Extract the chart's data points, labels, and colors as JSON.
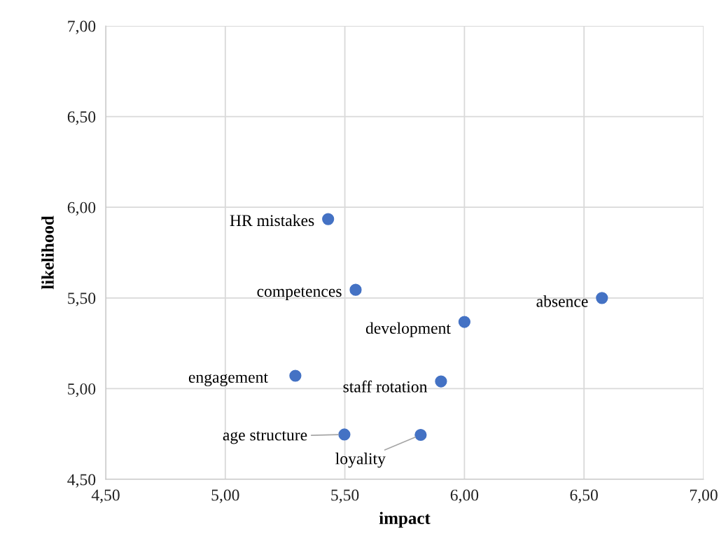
{
  "chart_data": {
    "type": "scatter",
    "xlabel": "impact",
    "ylabel": "likelihood",
    "series": [
      {
        "color": "#4472c4",
        "x": [
          5.43,
          5.545,
          6.575,
          6.0,
          5.293,
          5.902,
          5.498,
          5.817
        ],
        "values": [
          5.935,
          5.545,
          5.5,
          5.368,
          5.071,
          5.04,
          4.747,
          4.745
        ]
      }
    ],
    "annotations": [
      {
        "text": "HR mistakes",
        "x": 5.43,
        "y": 5.935
      },
      {
        "text": "competences",
        "x": 5.545,
        "y": 5.545
      },
      {
        "text": "absence",
        "x": 6.575,
        "y": 5.5
      },
      {
        "text": "development",
        "x": 6.0,
        "y": 5.368
      },
      {
        "text": "engagement",
        "x": 5.293,
        "y": 5.071
      },
      {
        "text": "staff rotation",
        "x": 5.902,
        "y": 5.04
      },
      {
        "text": "age structure",
        "x": 5.498,
        "y": 4.747
      },
      {
        "text": "loyality",
        "x": 5.817,
        "y": 4.745
      }
    ],
    "xlim": [
      4.5,
      7.0
    ],
    "ylim": [
      4.5,
      7.0
    ],
    "xticks": [
      {
        "value": 4.5,
        "label": "4,50"
      },
      {
        "value": 5.0,
        "label": "5,00"
      },
      {
        "value": 5.5,
        "label": "5,50"
      },
      {
        "value": 6.0,
        "label": "6,00"
      },
      {
        "value": 6.5,
        "label": "6,50"
      },
      {
        "value": 7.0,
        "label": "7,00"
      }
    ],
    "yticks": [
      {
        "value": 4.5,
        "label": "4,50"
      },
      {
        "value": 5.0,
        "label": "5,00"
      },
      {
        "value": 5.5,
        "label": "5,50"
      },
      {
        "value": 6.0,
        "label": "6,00"
      },
      {
        "value": 6.5,
        "label": "6,50"
      },
      {
        "value": 7.0,
        "label": "7,00"
      }
    ],
    "grid": true,
    "marker": "circle"
  }
}
